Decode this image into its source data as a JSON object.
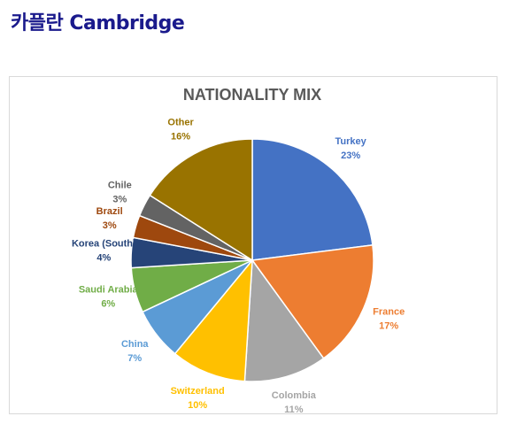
{
  "page_title": "카플란 Cambridge",
  "chart_data": {
    "type": "pie",
    "title": "NATIONALITY MIX",
    "categories": [
      "Turkey",
      "France",
      "Colombia",
      "Switzerland",
      "China",
      "Saudi Arabia",
      "Korea (South)",
      "Brazil",
      "Chile",
      "Other"
    ],
    "values": [
      23,
      17,
      11,
      10,
      7,
      6,
      4,
      3,
      3,
      16
    ],
    "value_labels": [
      "23%",
      "17%",
      "11%",
      "10%",
      "7%",
      "6%",
      "4%",
      "3%",
      "3%",
      "16%"
    ],
    "colors": [
      "#4472c4",
      "#ed7d31",
      "#a5a5a5",
      "#ffc000",
      "#5b9bd5",
      "#70ad47",
      "#264478",
      "#9e480e",
      "#636363",
      "#997300"
    ]
  }
}
